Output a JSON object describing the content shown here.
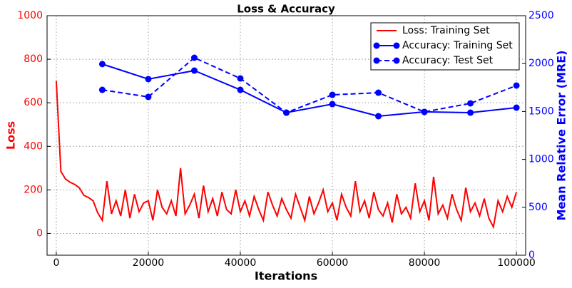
{
  "chart_data": {
    "type": "line",
    "title": "Loss & Accuracy",
    "x_label": "Iterations",
    "y_label": "Loss",
    "y2_label": "Mean Relative Error (MRE)",
    "xlim": [
      -2000,
      102000
    ],
    "xticks": [
      0,
      20000,
      40000,
      60000,
      80000,
      100000
    ],
    "ylim": [
      -100,
      1000
    ],
    "yticks": [
      0,
      200,
      400,
      600,
      800,
      1000
    ],
    "y2lim": [
      0,
      2500
    ],
    "y2ticks": [
      0,
      500,
      1000,
      1500,
      2000,
      2500
    ],
    "grid": true,
    "legend": "upper right",
    "y_color": "#ff0000",
    "y2_color": "#0000ff",
    "series": [
      {
        "name": "Loss: Training Set",
        "color": "#ff0000",
        "dashed": false,
        "markers": false,
        "x": [
          0,
          1000,
          2000,
          3000,
          4000,
          5000,
          6000,
          7000,
          8000,
          9000,
          10000,
          11000,
          12000,
          13000,
          14000,
          15000,
          16000,
          17000,
          18000,
          19000,
          20000,
          21000,
          22000,
          23000,
          24000,
          25000,
          26000,
          27000,
          28000,
          29000,
          30000,
          31000,
          32000,
          33000,
          34000,
          35000,
          36000,
          37000,
          38000,
          39000,
          40000,
          41000,
          42000,
          43000,
          44000,
          45000,
          46000,
          47000,
          48000,
          49000,
          50000,
          51000,
          52000,
          53000,
          54000,
          55000,
          56000,
          57000,
          58000,
          59000,
          60000,
          61000,
          62000,
          63000,
          64000,
          65000,
          66000,
          67000,
          68000,
          69000,
          70000,
          71000,
          72000,
          73000,
          74000,
          75000,
          76000,
          77000,
          78000,
          79000,
          80000,
          81000,
          82000,
          83000,
          84000,
          85000,
          86000,
          87000,
          88000,
          89000,
          90000,
          91000,
          92000,
          93000,
          94000,
          95000,
          96000,
          97000,
          98000,
          99000,
          100000
        ],
        "values": [
          700,
          285,
          250,
          235,
          225,
          210,
          175,
          165,
          150,
          95,
          60,
          240,
          90,
          150,
          80,
          200,
          70,
          180,
          100,
          140,
          150,
          60,
          200,
          120,
          90,
          150,
          80,
          300,
          90,
          130,
          180,
          70,
          220,
          100,
          160,
          80,
          190,
          110,
          90,
          200,
          100,
          150,
          80,
          170,
          110,
          60,
          190,
          130,
          80,
          160,
          110,
          70,
          180,
          120,
          60,
          170,
          90,
          140,
          200,
          100,
          140,
          60,
          180,
          120,
          80,
          240,
          100,
          150,
          70,
          190,
          110,
          80,
          140,
          50,
          180,
          90,
          120,
          70,
          230,
          100,
          150,
          60,
          260,
          90,
          130,
          70,
          180,
          110,
          60,
          210,
          100,
          140,
          80,
          160,
          70,
          30,
          150,
          100,
          170,
          120,
          190
        ]
      },
      {
        "name": "Accuracy: Training Set",
        "color": "#0000ff",
        "dashed": false,
        "markers": true,
        "axis": "y2",
        "x": [
          10000,
          20000,
          30000,
          40000,
          50000,
          60000,
          70000,
          80000,
          90000,
          100000
        ],
        "values": [
          1995,
          1838,
          1927,
          1726,
          1488,
          1577,
          1451,
          1496,
          1488,
          1540
        ]
      },
      {
        "name": "Accuracy: Test Set",
        "color": "#0000ff",
        "dashed": true,
        "markers": true,
        "axis": "y2",
        "x": [
          10000,
          20000,
          30000,
          40000,
          50000,
          60000,
          70000,
          80000,
          90000,
          100000
        ],
        "values": [
          1726,
          1652,
          2061,
          1845,
          1488,
          1674,
          1696,
          1496,
          1585,
          1771
        ]
      }
    ]
  }
}
